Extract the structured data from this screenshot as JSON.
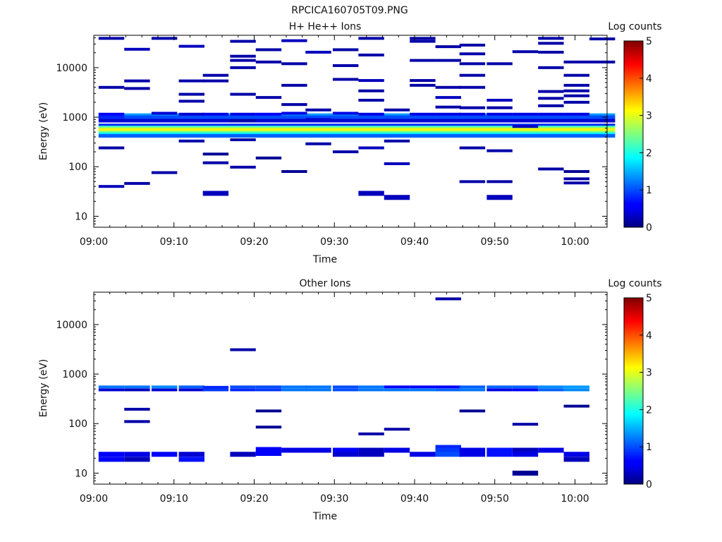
{
  "figure_title": "RPCICA160705T09.PNG",
  "chart_data": [
    {
      "type": "heatmap",
      "title": "H+ He++ Ions",
      "xlabel": "Time",
      "ylabel": "Energy (eV)",
      "y_scale": "log",
      "xlim_minutes_after_0900": [
        0,
        64
      ],
      "ylim": [
        6,
        45000
      ],
      "x_ticks": [
        "09:00",
        "09:10",
        "09:20",
        "09:30",
        "09:40",
        "09:50",
        "10:00"
      ],
      "y_ticks": [
        "10",
        "100",
        "1000",
        "10000"
      ],
      "colorbar": {
        "label": "Log counts",
        "min": 0,
        "max": 5,
        "ticks": [
          "0",
          "1",
          "2",
          "3",
          "4",
          "5"
        ]
      },
      "time_bins_minutes": [
        2.2,
        5.4,
        8.8,
        12.2,
        15.2,
        18.6,
        21.8,
        25.0,
        28.0,
        31.4,
        34.6,
        37.8,
        41.0,
        44.2,
        47.2,
        50.6,
        53.8,
        57.0,
        60.2,
        63.4
      ],
      "cells": [
        {
          "bin": 0,
          "e": 39000,
          "v": 0.2
        },
        {
          "bin": 0,
          "e": 4000,
          "v": 0.2
        },
        {
          "bin": 0,
          "e": 1150,
          "v": 0.6
        },
        {
          "bin": 0,
          "e": 1000,
          "v": 0.8
        },
        {
          "bin": 0,
          "e": 240,
          "v": 0.2
        },
        {
          "bin": 0,
          "e": 40,
          "v": 0.3
        },
        {
          "bin": 1,
          "e": 23500,
          "v": 0.3
        },
        {
          "bin": 1,
          "e": 5400,
          "v": 0.2
        },
        {
          "bin": 1,
          "e": 3800,
          "v": 0.2
        },
        {
          "bin": 1,
          "e": 46,
          "v": 0.2
        },
        {
          "bin": 2,
          "e": 39000,
          "v": 0.2
        },
        {
          "bin": 2,
          "e": 1200,
          "v": 0.4
        },
        {
          "bin": 2,
          "e": 76,
          "v": 0.2
        },
        {
          "bin": 3,
          "e": 27000,
          "v": 0.3
        },
        {
          "bin": 3,
          "e": 5400,
          "v": 0.2
        },
        {
          "bin": 3,
          "e": 2900,
          "v": 0.2
        },
        {
          "bin": 3,
          "e": 2100,
          "v": 0.2
        },
        {
          "bin": 3,
          "e": 1150,
          "v": 0.4
        },
        {
          "bin": 3,
          "e": 330,
          "v": 0.2
        },
        {
          "bin": 4,
          "e": 7000,
          "v": 0.2
        },
        {
          "bin": 4,
          "e": 5400,
          "v": 0.2
        },
        {
          "bin": 4,
          "e": 1150,
          "v": 0.5
        },
        {
          "bin": 4,
          "e": 180,
          "v": 0.1
        },
        {
          "bin": 4,
          "e": 120,
          "v": 0.2
        },
        {
          "bin": 4,
          "e": 29,
          "v": 0.3
        },
        {
          "bin": 5,
          "e": 34000,
          "v": 0.2
        },
        {
          "bin": 5,
          "e": 17000,
          "v": 0.2
        },
        {
          "bin": 5,
          "e": 14000,
          "v": 0.2
        },
        {
          "bin": 5,
          "e": 10000,
          "v": 0.2
        },
        {
          "bin": 5,
          "e": 2900,
          "v": 0.2
        },
        {
          "bin": 5,
          "e": 1150,
          "v": 0.5
        },
        {
          "bin": 5,
          "e": 850,
          "v": 0.2
        },
        {
          "bin": 5,
          "e": 350,
          "v": 0.2
        },
        {
          "bin": 5,
          "e": 98,
          "v": 0.2
        },
        {
          "bin": 6,
          "e": 23000,
          "v": 0.2
        },
        {
          "bin": 6,
          "e": 13000,
          "v": 0.2
        },
        {
          "bin": 6,
          "e": 2500,
          "v": 0.2
        },
        {
          "bin": 6,
          "e": 1150,
          "v": 0.6
        },
        {
          "bin": 6,
          "e": 150,
          "v": 0.1
        },
        {
          "bin": 7,
          "e": 35000,
          "v": 0.3
        },
        {
          "bin": 7,
          "e": 12000,
          "v": 0.2
        },
        {
          "bin": 7,
          "e": 4400,
          "v": 0.2
        },
        {
          "bin": 7,
          "e": 1800,
          "v": 0.2
        },
        {
          "bin": 7,
          "e": 1200,
          "v": 0.5
        },
        {
          "bin": 7,
          "e": 80,
          "v": 0.1
        },
        {
          "bin": 8,
          "e": 20500,
          "v": 0.3
        },
        {
          "bin": 8,
          "e": 1400,
          "v": 0.2
        },
        {
          "bin": 8,
          "e": 900,
          "v": 0.4
        },
        {
          "bin": 8,
          "e": 290,
          "v": 0.2
        },
        {
          "bin": 9,
          "e": 23000,
          "v": 0.2
        },
        {
          "bin": 9,
          "e": 11000,
          "v": 0.2
        },
        {
          "bin": 9,
          "e": 5800,
          "v": 0.2
        },
        {
          "bin": 9,
          "e": 1200,
          "v": 0.5
        },
        {
          "bin": 9,
          "e": 200,
          "v": 0.2
        },
        {
          "bin": 10,
          "e": 39000,
          "v": 0.2
        },
        {
          "bin": 10,
          "e": 18000,
          "v": 0.2
        },
        {
          "bin": 10,
          "e": 5500,
          "v": 0.3
        },
        {
          "bin": 10,
          "e": 3400,
          "v": 0.2
        },
        {
          "bin": 10,
          "e": 2200,
          "v": 0.2
        },
        {
          "bin": 10,
          "e": 1150,
          "v": 0.5
        },
        {
          "bin": 10,
          "e": 240,
          "v": 0.3
        },
        {
          "bin": 10,
          "e": 29,
          "v": 0.3
        },
        {
          "bin": 11,
          "e": 1400,
          "v": 0.2
        },
        {
          "bin": 11,
          "e": 330,
          "v": 0.2
        },
        {
          "bin": 11,
          "e": 115,
          "v": 0.3
        },
        {
          "bin": 11,
          "e": 24,
          "v": 0.3
        },
        {
          "bin": 12,
          "e": 39000,
          "v": 0.2
        },
        {
          "bin": 12,
          "e": 34000,
          "v": 0.2
        },
        {
          "bin": 12,
          "e": 14000,
          "v": 0.2
        },
        {
          "bin": 12,
          "e": 5500,
          "v": 0.2
        },
        {
          "bin": 12,
          "e": 4400,
          "v": 0.2
        },
        {
          "bin": 12,
          "e": 1150,
          "v": 0.5
        },
        {
          "bin": 13,
          "e": 26500,
          "v": 0.2
        },
        {
          "bin": 13,
          "e": 14000,
          "v": 0.2
        },
        {
          "bin": 13,
          "e": 4000,
          "v": 0.2
        },
        {
          "bin": 13,
          "e": 2500,
          "v": 0.3
        },
        {
          "bin": 13,
          "e": 1600,
          "v": 0.2
        },
        {
          "bin": 13,
          "e": 1150,
          "v": 0.5
        },
        {
          "bin": 14,
          "e": 28500,
          "v": 0.2
        },
        {
          "bin": 14,
          "e": 19000,
          "v": 0.2
        },
        {
          "bin": 14,
          "e": 12000,
          "v": 0.2
        },
        {
          "bin": 14,
          "e": 7000,
          "v": 0.2
        },
        {
          "bin": 14,
          "e": 4000,
          "v": 0.2
        },
        {
          "bin": 14,
          "e": 1550,
          "v": 0.2
        },
        {
          "bin": 14,
          "e": 1150,
          "v": 0.5
        },
        {
          "bin": 14,
          "e": 240,
          "v": 0.2
        },
        {
          "bin": 14,
          "e": 50,
          "v": 0.2
        },
        {
          "bin": 15,
          "e": 12000,
          "v": 0.2
        },
        {
          "bin": 15,
          "e": 2200,
          "v": 0.3
        },
        {
          "bin": 15,
          "e": 1550,
          "v": 0.2
        },
        {
          "bin": 15,
          "e": 1150,
          "v": 0.5
        },
        {
          "bin": 15,
          "e": 210,
          "v": 0.2
        },
        {
          "bin": 15,
          "e": 50,
          "v": 0.2
        },
        {
          "bin": 15,
          "e": 24,
          "v": 0.3
        },
        {
          "bin": 16,
          "e": 21000,
          "v": 0.2
        },
        {
          "bin": 16,
          "e": 1150,
          "v": 0.5
        },
        {
          "bin": 16,
          "e": 650,
          "v": 0.3
        },
        {
          "bin": 17,
          "e": 39000,
          "v": 0.2
        },
        {
          "bin": 17,
          "e": 31000,
          "v": 0.2
        },
        {
          "bin": 17,
          "e": 20500,
          "v": 0.2
        },
        {
          "bin": 17,
          "e": 10000,
          "v": 0.2
        },
        {
          "bin": 17,
          "e": 3300,
          "v": 0.2
        },
        {
          "bin": 17,
          "e": 2400,
          "v": 0.2
        },
        {
          "bin": 17,
          "e": 1700,
          "v": 0.2
        },
        {
          "bin": 17,
          "e": 1150,
          "v": 0.5
        },
        {
          "bin": 17,
          "e": 90,
          "v": 0.2
        },
        {
          "bin": 18,
          "e": 13000,
          "v": 0.2
        },
        {
          "bin": 18,
          "e": 7000,
          "v": 0.2
        },
        {
          "bin": 18,
          "e": 4400,
          "v": 0.2
        },
        {
          "bin": 18,
          "e": 3400,
          "v": 0.2
        },
        {
          "bin": 18,
          "e": 2700,
          "v": 0.2
        },
        {
          "bin": 18,
          "e": 2000,
          "v": 0.2
        },
        {
          "bin": 18,
          "e": 1150,
          "v": 0.5
        },
        {
          "bin": 18,
          "e": 80,
          "v": 0.1
        },
        {
          "bin": 18,
          "e": 57,
          "v": 0.2
        },
        {
          "bin": 18,
          "e": 47,
          "v": 0.2
        },
        {
          "bin": 19,
          "e": 38000,
          "v": 0.2
        },
        {
          "bin": 19,
          "e": 13000,
          "v": 0.2
        }
      ],
      "bands": [
        {
          "e": 1100,
          "v": 1.4
        },
        {
          "e": 1000,
          "v": 1.0
        },
        {
          "e": 850,
          "v": 0.4
        },
        {
          "e": 680,
          "v": 0.8
        },
        {
          "e": 620,
          "v": 2.2
        },
        {
          "e": 580,
          "v": 2.7
        },
        {
          "e": 545,
          "v": 3.2
        },
        {
          "e": 510,
          "v": 2.9
        },
        {
          "e": 480,
          "v": 2.4
        },
        {
          "e": 450,
          "v": 1.8
        },
        {
          "e": 420,
          "v": 1.1
        }
      ]
    },
    {
      "type": "heatmap",
      "title": "Other Ions",
      "xlabel": "Time",
      "ylabel": "Energy (eV)",
      "y_scale": "log",
      "xlim_minutes_after_0900": [
        0,
        64
      ],
      "ylim": [
        6,
        45000
      ],
      "x_ticks": [
        "09:00",
        "09:10",
        "09:20",
        "09:30",
        "09:40",
        "09:50",
        "10:00"
      ],
      "y_ticks": [
        "10",
        "100",
        "1000",
        "10000"
      ],
      "colorbar": {
        "label": "Log counts",
        "min": 0,
        "max": 5,
        "ticks": [
          "0",
          "1",
          "2",
          "3",
          "4",
          "5"
        ]
      },
      "time_bins_minutes": [
        2.2,
        5.4,
        8.8,
        12.2,
        15.2,
        18.6,
        21.8,
        25.0,
        28.0,
        31.4,
        34.6,
        37.8,
        41.0,
        44.2,
        47.2,
        50.6,
        53.8,
        57.0,
        60.2,
        63.4
      ],
      "cells": [
        {
          "bin": 0,
          "e": 550,
          "v": 1.2
        },
        {
          "bin": 0,
          "e": 480,
          "v": 0.4
        },
        {
          "bin": 0,
          "e": 24,
          "v": 0.6
        },
        {
          "bin": 0,
          "e": 19,
          "v": 0.6
        },
        {
          "bin": 1,
          "e": 550,
          "v": 1.2
        },
        {
          "bin": 1,
          "e": 480,
          "v": 0.3
        },
        {
          "bin": 1,
          "e": 195,
          "v": 0.2
        },
        {
          "bin": 1,
          "e": 110,
          "v": 0.2
        },
        {
          "bin": 1,
          "e": 24,
          "v": 0.5
        },
        {
          "bin": 1,
          "e": 19,
          "v": 0.3
        },
        {
          "bin": 2,
          "e": 550,
          "v": 1.3
        },
        {
          "bin": 2,
          "e": 480,
          "v": 0.4
        },
        {
          "bin": 2,
          "e": 24,
          "v": 0.6
        },
        {
          "bin": 3,
          "e": 550,
          "v": 1.1
        },
        {
          "bin": 3,
          "e": 480,
          "v": 0.4
        },
        {
          "bin": 3,
          "e": 24,
          "v": 0.4
        },
        {
          "bin": 3,
          "e": 19,
          "v": 0.7
        },
        {
          "bin": 4,
          "e": 540,
          "v": 0.8
        },
        {
          "bin": 4,
          "e": 480,
          "v": 0.9
        },
        {
          "bin": 5,
          "e": 3100,
          "v": 0.2
        },
        {
          "bin": 5,
          "e": 550,
          "v": 1.0
        },
        {
          "bin": 5,
          "e": 480,
          "v": 0.8
        },
        {
          "bin": 5,
          "e": 24,
          "v": 0.3
        },
        {
          "bin": 6,
          "e": 550,
          "v": 1.0
        },
        {
          "bin": 6,
          "e": 480,
          "v": 0.9
        },
        {
          "bin": 6,
          "e": 180,
          "v": 0.1
        },
        {
          "bin": 6,
          "e": 85,
          "v": 0.1
        },
        {
          "bin": 6,
          "e": 30,
          "v": 0.6
        },
        {
          "bin": 6,
          "e": 25,
          "v": 0.6
        },
        {
          "bin": 7,
          "e": 550,
          "v": 1.2
        },
        {
          "bin": 7,
          "e": 480,
          "v": 1.2
        },
        {
          "bin": 7,
          "e": 29,
          "v": 0.5
        },
        {
          "bin": 8,
          "e": 550,
          "v": 1.2
        },
        {
          "bin": 8,
          "e": 480,
          "v": 1.2
        },
        {
          "bin": 8,
          "e": 29,
          "v": 0.5
        },
        {
          "bin": 9,
          "e": 550,
          "v": 1.0
        },
        {
          "bin": 9,
          "e": 480,
          "v": 1.0
        },
        {
          "bin": 9,
          "e": 29,
          "v": 0.6
        },
        {
          "bin": 9,
          "e": 24,
          "v": 0.4
        },
        {
          "bin": 10,
          "e": 550,
          "v": 1.2
        },
        {
          "bin": 10,
          "e": 480,
          "v": 1.2
        },
        {
          "bin": 10,
          "e": 62,
          "v": 0.2
        },
        {
          "bin": 10,
          "e": 29,
          "v": 0.3
        },
        {
          "bin": 10,
          "e": 24,
          "v": 0.3
        },
        {
          "bin": 11,
          "e": 550,
          "v": 0.6
        },
        {
          "bin": 11,
          "e": 480,
          "v": 1.2
        },
        {
          "bin": 11,
          "e": 77,
          "v": 0.2
        },
        {
          "bin": 11,
          "e": 29,
          "v": 0.5
        },
        {
          "bin": 12,
          "e": 550,
          "v": 0.6
        },
        {
          "bin": 12,
          "e": 480,
          "v": 1.2
        },
        {
          "bin": 12,
          "e": 24,
          "v": 0.5
        },
        {
          "bin": 13,
          "e": 33000,
          "v": 0.2
        },
        {
          "bin": 13,
          "e": 550,
          "v": 0.6
        },
        {
          "bin": 13,
          "e": 480,
          "v": 1.1
        },
        {
          "bin": 13,
          "e": 33,
          "v": 0.8
        },
        {
          "bin": 13,
          "e": 29,
          "v": 0.9
        },
        {
          "bin": 13,
          "e": 24,
          "v": 1.0
        },
        {
          "bin": 14,
          "e": 550,
          "v": 1.1
        },
        {
          "bin": 14,
          "e": 480,
          "v": 1.2
        },
        {
          "bin": 14,
          "e": 180,
          "v": 0.1
        },
        {
          "bin": 14,
          "e": 29,
          "v": 0.5
        },
        {
          "bin": 14,
          "e": 24,
          "v": 0.5
        },
        {
          "bin": 15,
          "e": 550,
          "v": 1.1
        },
        {
          "bin": 15,
          "e": 480,
          "v": 0.5
        },
        {
          "bin": 15,
          "e": 29,
          "v": 0.7
        },
        {
          "bin": 15,
          "e": 24,
          "v": 0.7
        },
        {
          "bin": 16,
          "e": 550,
          "v": 1.1
        },
        {
          "bin": 16,
          "e": 480,
          "v": 0.6
        },
        {
          "bin": 16,
          "e": 97,
          "v": 0.2
        },
        {
          "bin": 16,
          "e": 29,
          "v": 0.3
        },
        {
          "bin": 16,
          "e": 24,
          "v": 0.5
        },
        {
          "bin": 16,
          "e": 10,
          "v": 0.1
        },
        {
          "bin": 17,
          "e": 550,
          "v": 1.3
        },
        {
          "bin": 17,
          "e": 480,
          "v": 1.1
        },
        {
          "bin": 17,
          "e": 29,
          "v": 0.5
        },
        {
          "bin": 18,
          "e": 550,
          "v": 1.4
        },
        {
          "bin": 18,
          "e": 480,
          "v": 1.3
        },
        {
          "bin": 18,
          "e": 225,
          "v": 0.1
        },
        {
          "bin": 18,
          "e": 24,
          "v": 0.5
        },
        {
          "bin": 18,
          "e": 19,
          "v": 0.3
        }
      ],
      "bands": []
    }
  ]
}
